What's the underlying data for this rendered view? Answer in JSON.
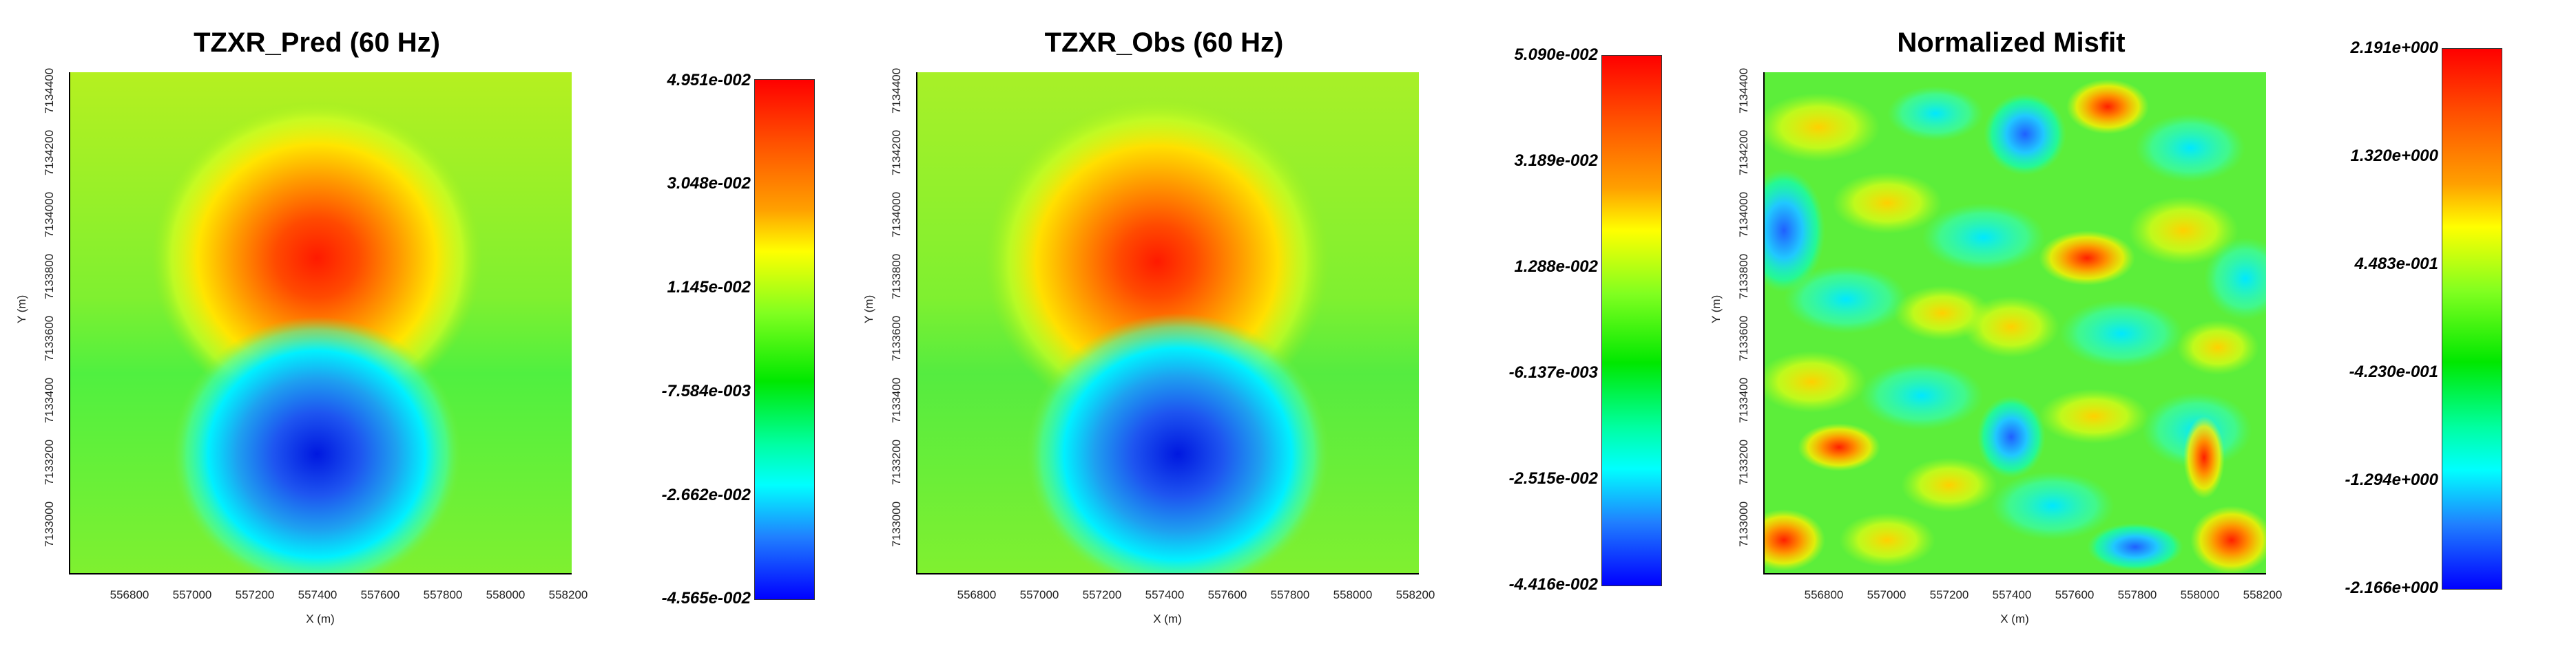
{
  "chart_data": [
    {
      "type": "heatmap",
      "title": "TZXR_Pred (60 Hz)",
      "xlabel": "X (m)",
      "ylabel": "Y (m)",
      "x_ticks": [
        "556800",
        "557000",
        "557200",
        "557400",
        "557600",
        "557800",
        "558000",
        "558200"
      ],
      "y_ticks": [
        "7133000",
        "7133200",
        "7133400",
        "7133600",
        "7133800",
        "7134000",
        "7134200",
        "7134400"
      ],
      "xlim": [
        556600,
        558200
      ],
      "ylim": [
        7132800,
        7134400
      ],
      "colorbar": {
        "ticks": [
          "4.951e-002",
          "3.048e-002",
          "1.145e-002",
          "-7.584e-003",
          "-2.662e-002",
          "-4.565e-002"
        ],
        "min": -0.04565,
        "max": 0.04951
      },
      "features": [
        {
          "label": "positive anomaly",
          "x": 557430,
          "y": 7133830,
          "value": 0.0495
        },
        {
          "label": "negative anomaly",
          "x": 557430,
          "y": 7133180,
          "value": -0.0456
        }
      ]
    },
    {
      "type": "heatmap",
      "title": "TZXR_Obs (60 Hz)",
      "xlabel": "X (m)",
      "ylabel": "Y (m)",
      "x_ticks": [
        "556800",
        "557000",
        "557200",
        "557400",
        "557600",
        "557800",
        "558000",
        "558200"
      ],
      "y_ticks": [
        "7133000",
        "7133200",
        "7133400",
        "7133600",
        "7133800",
        "7134000",
        "7134200",
        "7134400"
      ],
      "xlim": [
        556600,
        558200
      ],
      "ylim": [
        7132800,
        7134400
      ],
      "colorbar": {
        "ticks": [
          "5.090e-002",
          "3.189e-002",
          "1.288e-002",
          "-6.137e-003",
          "-2.515e-002",
          "-4.416e-002"
        ],
        "min": -0.04416,
        "max": 0.0509
      },
      "features": [
        {
          "label": "positive anomaly",
          "x": 557400,
          "y": 7133800,
          "value": 0.0509
        },
        {
          "label": "negative anomaly",
          "x": 557420,
          "y": 7133180,
          "value": -0.0442
        }
      ]
    },
    {
      "type": "heatmap",
      "title": "Normalized Misfit",
      "xlabel": "X (m)",
      "ylabel": "Y (m)",
      "x_ticks": [
        "556800",
        "557000",
        "557200",
        "557400",
        "557600",
        "557800",
        "558000",
        "558200"
      ],
      "y_ticks": [
        "7133000",
        "7133200",
        "7133400",
        "7133600",
        "7133800",
        "7134000",
        "7134200",
        "7134400"
      ],
      "xlim": [
        556600,
        558200
      ],
      "ylim": [
        7132800,
        7134400
      ],
      "colorbar": {
        "ticks": [
          "2.191e+000",
          "1.320e+000",
          "4.483e-001",
          "-4.230e-001",
          "-1.294e+000",
          "-2.166e+000"
        ],
        "min": -2.166,
        "max": 2.191
      }
    }
  ]
}
